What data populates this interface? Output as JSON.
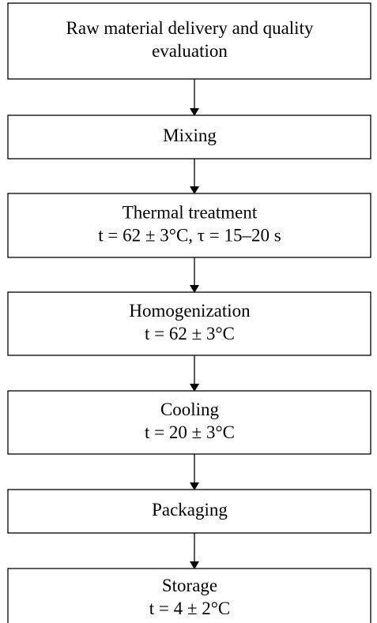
{
  "nodes": [
    {
      "lines": [
        "Raw material delivery and quality",
        "evaluation"
      ]
    },
    {
      "lines": [
        "Mixing"
      ]
    },
    {
      "lines": [
        "Thermal treatment",
        "t = 62 ± 3°C, τ = 15–20 s"
      ]
    },
    {
      "lines": [
        "Homogenization",
        "t = 62 ± 3°C"
      ]
    },
    {
      "lines": [
        "Cooling",
        "t = 20 ± 3°C"
      ]
    },
    {
      "lines": [
        "Packaging"
      ]
    },
    {
      "lines": [
        "Storage",
        "t = 4 ± 2°C"
      ]
    }
  ]
}
